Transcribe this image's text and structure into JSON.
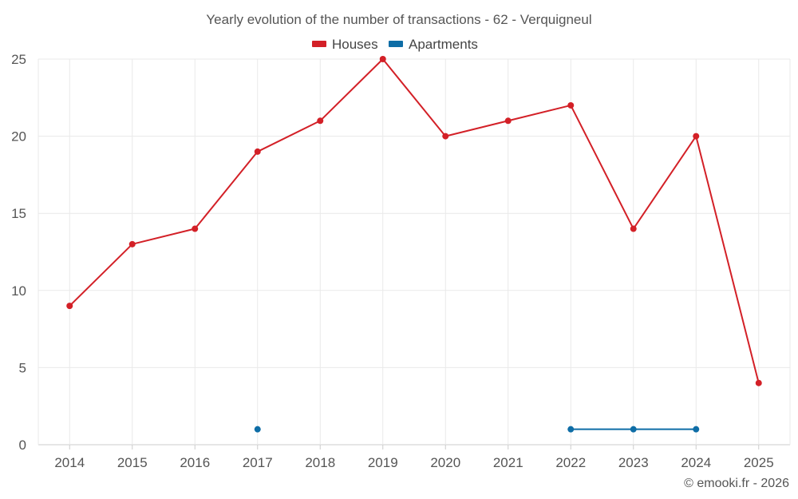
{
  "chart_data": {
    "type": "line",
    "title": "Yearly evolution of the number of transactions - 62 - Verquigneul",
    "categories": [
      "2014",
      "2015",
      "2016",
      "2017",
      "2018",
      "2019",
      "2020",
      "2021",
      "2022",
      "2023",
      "2024",
      "2025"
    ],
    "ylim": [
      0,
      25
    ],
    "yticks": [
      0,
      5,
      10,
      15,
      20,
      25
    ],
    "grid": true,
    "legend_position": "top-center",
    "series": [
      {
        "name": "Houses",
        "color": "#d32027",
        "values": [
          9,
          13,
          14,
          19,
          21,
          25,
          20,
          21,
          22,
          14,
          20,
          4
        ]
      },
      {
        "name": "Apartments",
        "color": "#0e6da6",
        "values": [
          null,
          null,
          null,
          1,
          null,
          null,
          null,
          null,
          1,
          1,
          1,
          null
        ]
      }
    ]
  },
  "credit": "© emooki.fr - 2026"
}
